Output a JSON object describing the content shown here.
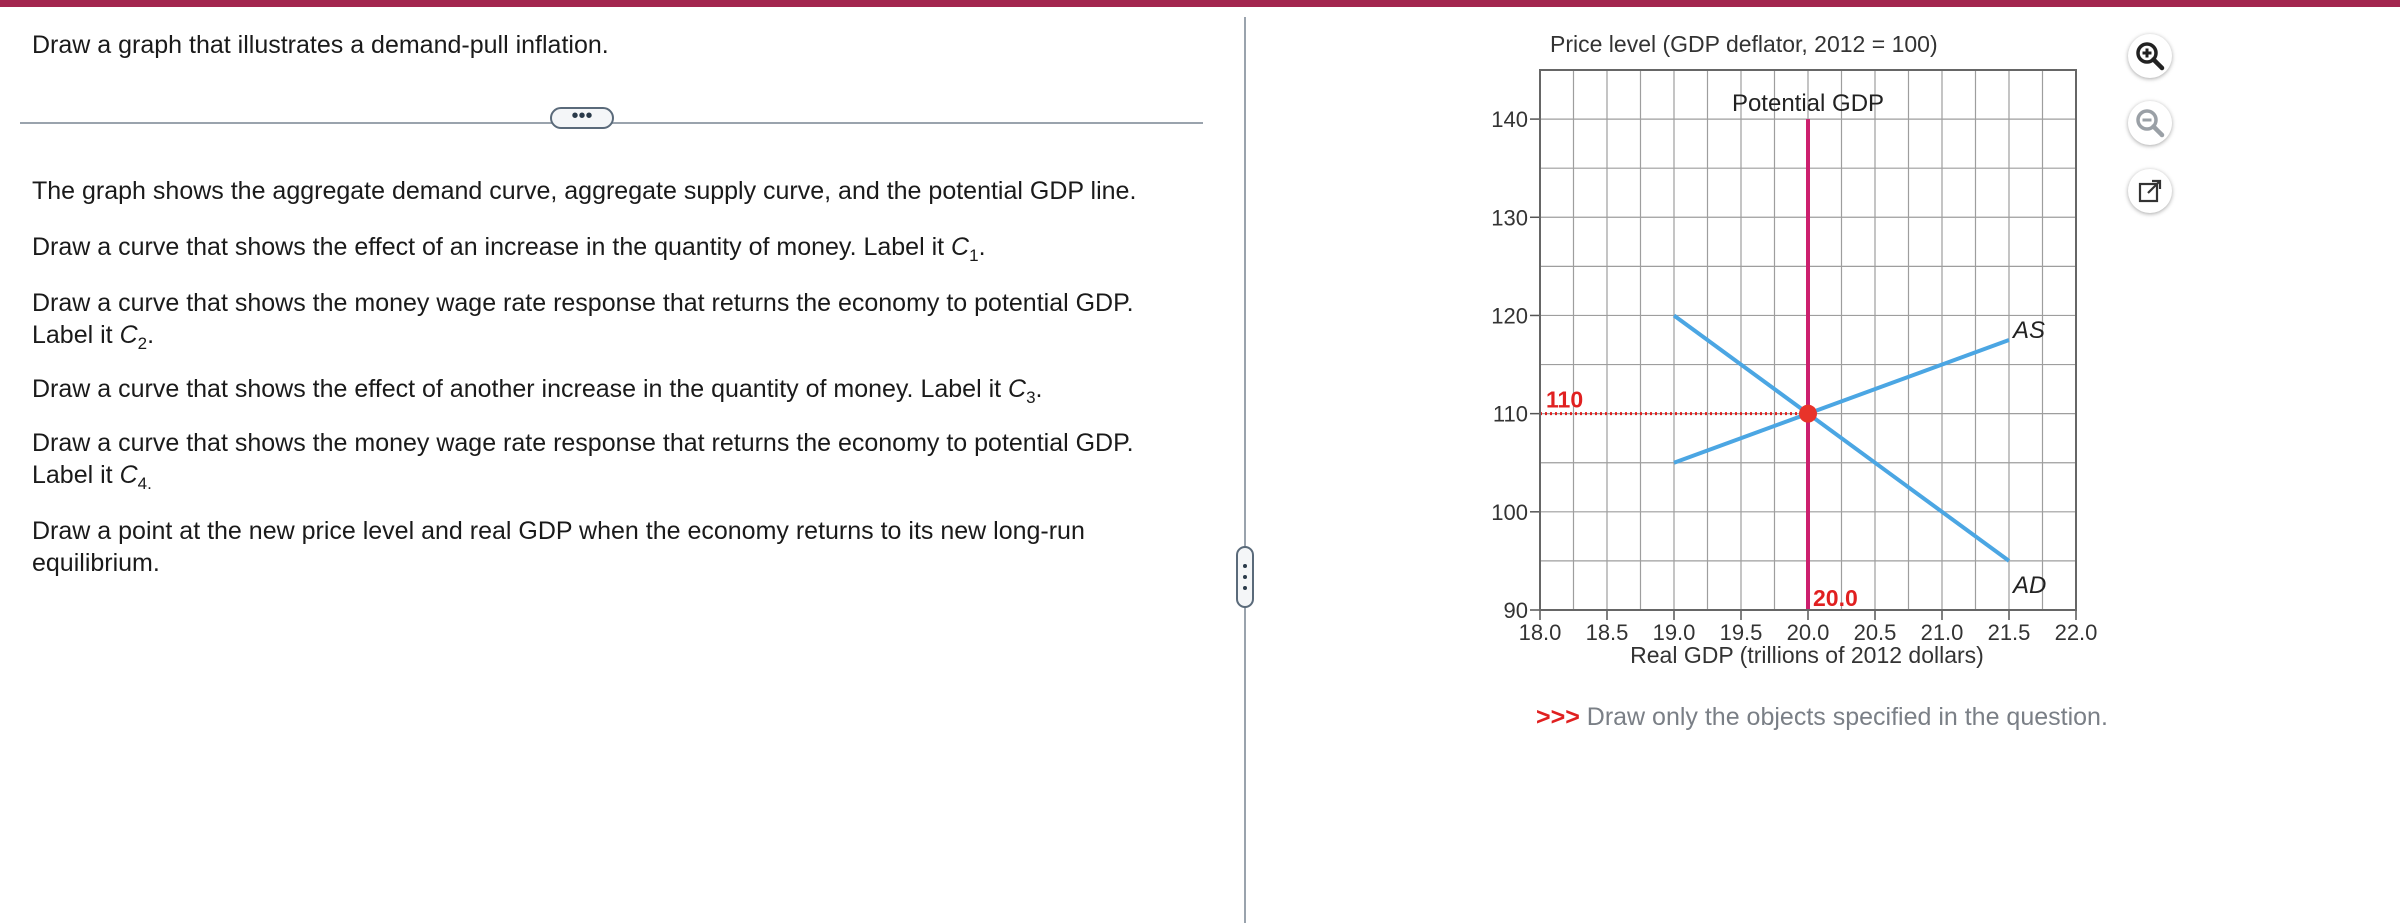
{
  "question": "Draw a graph that illustrates a demand-pull inflation.",
  "expand_label": "•••",
  "instructions": {
    "p1": "The graph shows the aggregate demand curve, aggregate supply curve, and the potential GDP line.",
    "p2_text": "Draw a curve that shows the effect of an increase in the quantity of money. Label  it ",
    "p2_var": "C",
    "p2_sub": "1",
    "p2_end": ".",
    "p3_line1": "Draw a curve that shows the money wage rate response that returns the economy to potential GDP.",
    "p3_text": "Label it ",
    "p3_var": "C",
    "p3_sub": "2",
    "p3_end": ".",
    "p4_text": "Draw a curve that shows the effect of another increase in the quantity of money. Label it ",
    "p4_var": "C",
    "p4_sub": "3",
    "p4_end": ".",
    "p5_line1": "Draw a curve that shows the money wage rate response that returns the economy to potential GDP.",
    "p5_text": "Label it ",
    "p5_var": "C",
    "p5_sub": "4.",
    "p6_line1": "Draw a point at the new price level and real GDP when the economy returns to its new long-run",
    "p6_line2": "equilibrium."
  },
  "toolbar": {
    "zoom_in_icon": "zoom-in-icon",
    "zoom_out_icon": "zoom-out-icon",
    "popout_icon": "external-link-icon"
  },
  "note": {
    "arrows": ">>>",
    "text": " Draw only the objects specified in the question."
  },
  "colors": {
    "accent_bar": "#a3264f",
    "curve": "#4ba6e3",
    "potential_gdp": "#cc1f6e",
    "equilibrium": "#e8332a",
    "label_red": "#e02020"
  },
  "chart_data": {
    "type": "line",
    "ylabel": "Price level (GDP deflator, 2012 = 100)",
    "xlabel": "Real GDP (trillions of 2012 dollars)",
    "xlim": [
      18.0,
      22.0
    ],
    "ylim": [
      90,
      145
    ],
    "x_ticks": [
      "18.0",
      "18.5",
      "19.0",
      "19.5",
      "20.0",
      "20.5",
      "21.0",
      "21.5",
      "22.0"
    ],
    "y_ticks": [
      "90",
      "100",
      "110",
      "120",
      "130",
      "140"
    ],
    "grid": true,
    "series": [
      {
        "name": "AS",
        "x": [
          19.0,
          21.5
        ],
        "y": [
          105,
          117.5
        ]
      },
      {
        "name": "AD",
        "x": [
          19.0,
          21.5
        ],
        "y": [
          120,
          95
        ]
      }
    ],
    "vertical_lines": [
      {
        "name": "Potential GDP",
        "x": 20.0
      }
    ],
    "equilibrium": {
      "x": 20.0,
      "y": 110,
      "x_label": "20.0",
      "y_label": "110"
    }
  }
}
